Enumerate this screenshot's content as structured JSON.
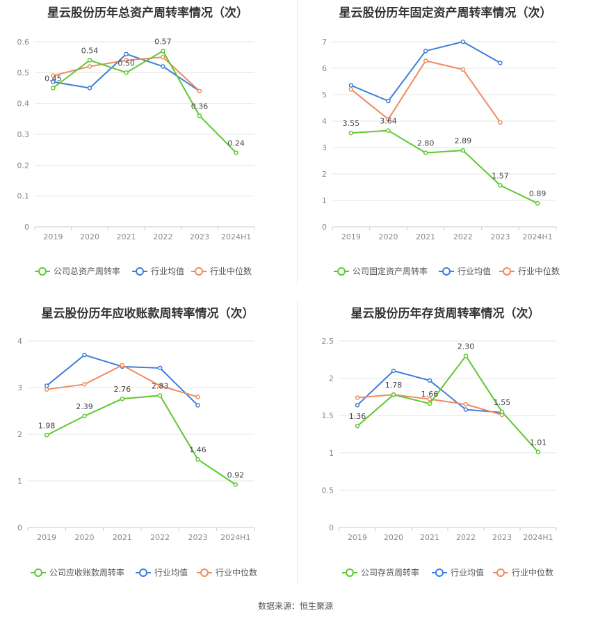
{
  "source": "数据来源：恒生聚源",
  "chart_data": [
    {
      "type": "line",
      "title": "星云股份历年总资产周转率情况（次）",
      "categories": [
        "2019",
        "2020",
        "2021",
        "2022",
        "2023",
        "2024H1"
      ],
      "y_ticks": [
        "0",
        "0.1",
        "0.2",
        "0.3",
        "0.4",
        "0.5",
        "0.6"
      ],
      "ylim": [
        0,
        0.6
      ],
      "grid": true,
      "legend_position": "bottom",
      "series": [
        {
          "name": "公司总资产周转率",
          "color": "#5cc82e",
          "values": [
            0.45,
            0.54,
            0.5,
            0.57,
            0.36,
            0.24
          ],
          "labels": [
            "0.45",
            "0.54",
            "0.50",
            "0.57",
            "0.36",
            "0.24"
          ]
        },
        {
          "name": "行业均值",
          "color": "#3d7ddc",
          "values": [
            0.47,
            0.45,
            0.56,
            0.52,
            0.44,
            null
          ]
        },
        {
          "name": "行业中位数",
          "color": "#f08a5d",
          "values": [
            0.49,
            0.52,
            0.54,
            0.55,
            0.44,
            null
          ]
        }
      ]
    },
    {
      "type": "line",
      "title": "星云股份历年固定资产周转率情况（次）",
      "categories": [
        "2019",
        "2020",
        "2021",
        "2022",
        "2023",
        "2024H1"
      ],
      "y_ticks": [
        "0",
        "1",
        "2",
        "3",
        "4",
        "5",
        "6",
        "7"
      ],
      "ylim": [
        0,
        7
      ],
      "grid": true,
      "legend_position": "bottom",
      "series": [
        {
          "name": "公司固定资产周转率",
          "color": "#5cc82e",
          "values": [
            3.55,
            3.64,
            2.8,
            2.89,
            1.57,
            0.89
          ],
          "labels": [
            "3.55",
            "3.64",
            "2.80",
            "2.89",
            "1.57",
            "0.89"
          ]
        },
        {
          "name": "行业均值",
          "color": "#3d7ddc",
          "values": [
            5.35,
            4.76,
            6.65,
            7.0,
            6.2,
            null
          ]
        },
        {
          "name": "行业中位数",
          "color": "#f08a5d",
          "values": [
            5.2,
            4.07,
            6.28,
            5.95,
            3.95,
            null
          ]
        }
      ]
    },
    {
      "type": "line",
      "title": "星云股份历年应收账款周转率情况（次）",
      "categories": [
        "2019",
        "2020",
        "2021",
        "2022",
        "2023",
        "2024H1"
      ],
      "y_ticks": [
        "0",
        "1",
        "2",
        "3",
        "4"
      ],
      "ylim": [
        0,
        4
      ],
      "grid": true,
      "legend_position": "bottom",
      "series": [
        {
          "name": "公司应收账款周转率",
          "color": "#5cc82e",
          "values": [
            1.98,
            2.39,
            2.76,
            2.83,
            1.46,
            0.92
          ],
          "labels": [
            "1.98",
            "2.39",
            "2.76",
            "2.83",
            "1.46",
            "0.92"
          ]
        },
        {
          "name": "行业均值",
          "color": "#3d7ddc",
          "values": [
            3.04,
            3.7,
            3.45,
            3.42,
            2.62,
            null
          ]
        },
        {
          "name": "行业中位数",
          "color": "#f08a5d",
          "values": [
            2.96,
            3.07,
            3.48,
            3.04,
            2.8,
            null
          ]
        }
      ]
    },
    {
      "type": "line",
      "title": "星云股份历年存货周转率情况（次）",
      "categories": [
        "2019",
        "2020",
        "2021",
        "2022",
        "2023",
        "2024H1"
      ],
      "y_ticks": [
        "0",
        "0.5",
        "1",
        "1.5",
        "2",
        "2.5"
      ],
      "ylim": [
        0,
        2.5
      ],
      "grid": true,
      "legend_position": "bottom",
      "series": [
        {
          "name": "公司存货周转率",
          "color": "#5cc82e",
          "values": [
            1.36,
            1.78,
            1.66,
            2.3,
            1.55,
            1.01
          ],
          "labels": [
            "1.36",
            "1.78",
            "1.66",
            "2.30",
            "1.55",
            "1.01"
          ]
        },
        {
          "name": "行业均值",
          "color": "#3d7ddc",
          "values": [
            1.64,
            2.1,
            1.97,
            1.58,
            1.54,
            null
          ]
        },
        {
          "name": "行业中位数",
          "color": "#f08a5d",
          "values": [
            1.74,
            1.78,
            1.72,
            1.65,
            1.51,
            null
          ]
        }
      ]
    }
  ]
}
